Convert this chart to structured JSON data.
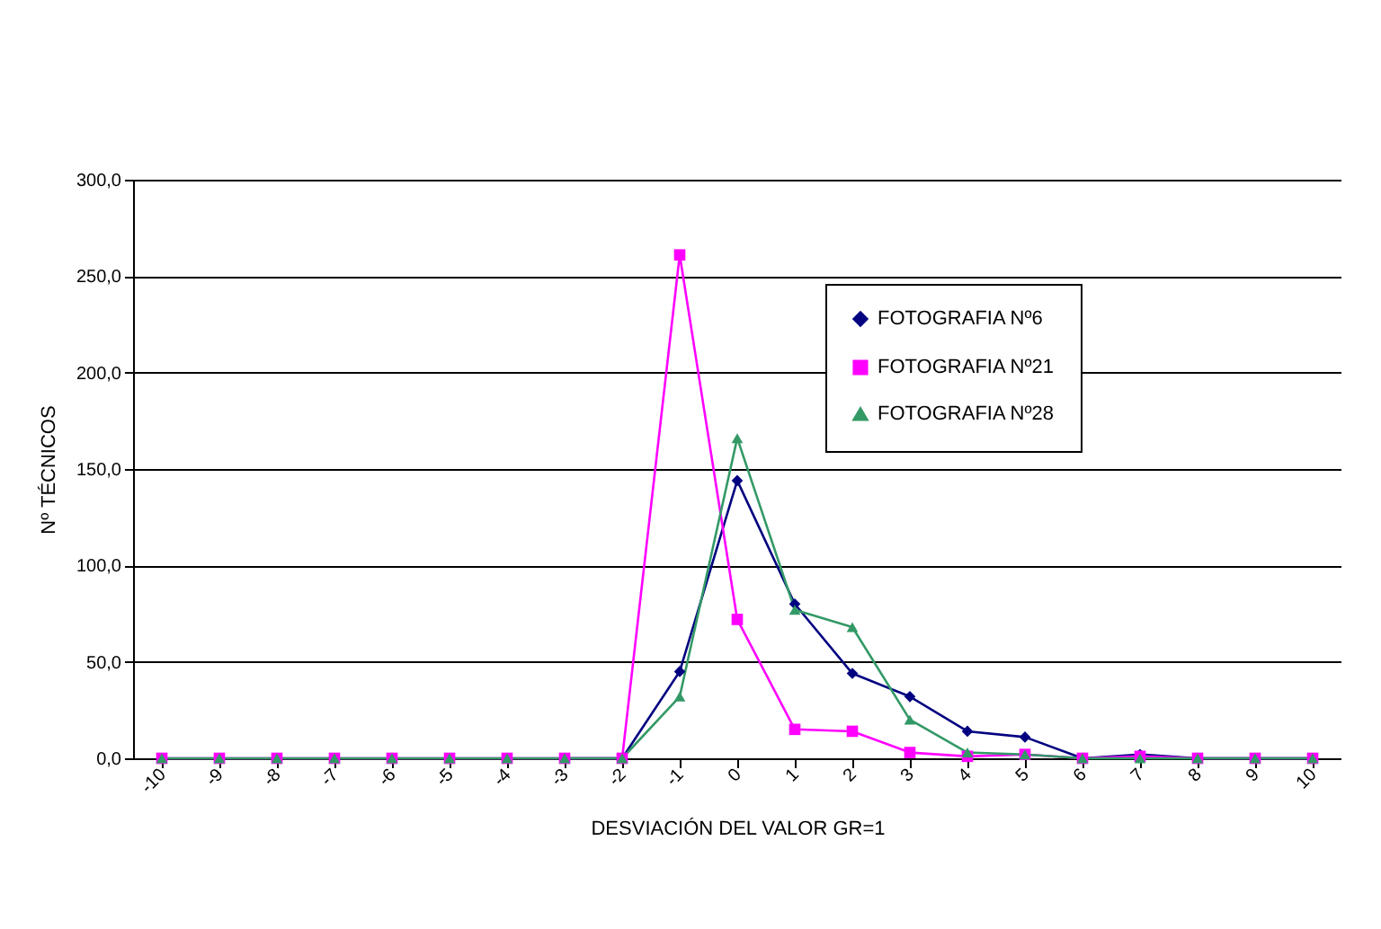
{
  "chart_data": {
    "type": "line",
    "xlabel": "DESVIACIÓN DEL VALOR GR=1",
    "ylabel": "Nº TÉCNICOS",
    "categories": [
      "-10",
      "-9",
      "-8",
      "-7",
      "-6",
      "-5",
      "-4",
      "-3",
      "-2",
      "-1",
      "0",
      "1",
      "2",
      "3",
      "4",
      "5",
      "6",
      "7",
      "8",
      "9",
      "10"
    ],
    "series": [
      {
        "name": "FOTOGRAFIA Nº6",
        "color": "#000080",
        "marker": "diamond",
        "values": [
          null,
          null,
          null,
          null,
          null,
          null,
          null,
          0,
          0,
          45,
          144,
          80,
          44,
          32,
          14,
          11,
          0,
          2,
          0,
          0,
          0
        ]
      },
      {
        "name": "FOTOGRAFIA Nº21",
        "color": "#ff00ff",
        "marker": "square",
        "values": [
          0,
          0,
          0,
          0,
          0,
          0,
          0,
          0,
          0,
          261,
          72,
          15,
          14,
          3,
          1,
          2,
          0,
          1,
          0,
          0,
          0
        ]
      },
      {
        "name": "FOTOGRAFIA Nº28",
        "color": "#339966",
        "marker": "triangle",
        "values": [
          0,
          0,
          0,
          0,
          0,
          0,
          0,
          0,
          0,
          32,
          166,
          77,
          68,
          20,
          3,
          2,
          0,
          0,
          0,
          0,
          0
        ]
      }
    ],
    "ylim": [
      0,
      300
    ],
    "yticks": [
      {
        "value": 0,
        "label": "0,0"
      },
      {
        "value": 50,
        "label": "50,0"
      },
      {
        "value": 100,
        "label": "100,0"
      },
      {
        "value": 150,
        "label": "150,0"
      },
      {
        "value": 200,
        "label": "200,0"
      },
      {
        "value": 250,
        "label": "250,0"
      },
      {
        "value": 300,
        "label": "300,0"
      }
    ],
    "grid": "y",
    "legend": "top right"
  }
}
